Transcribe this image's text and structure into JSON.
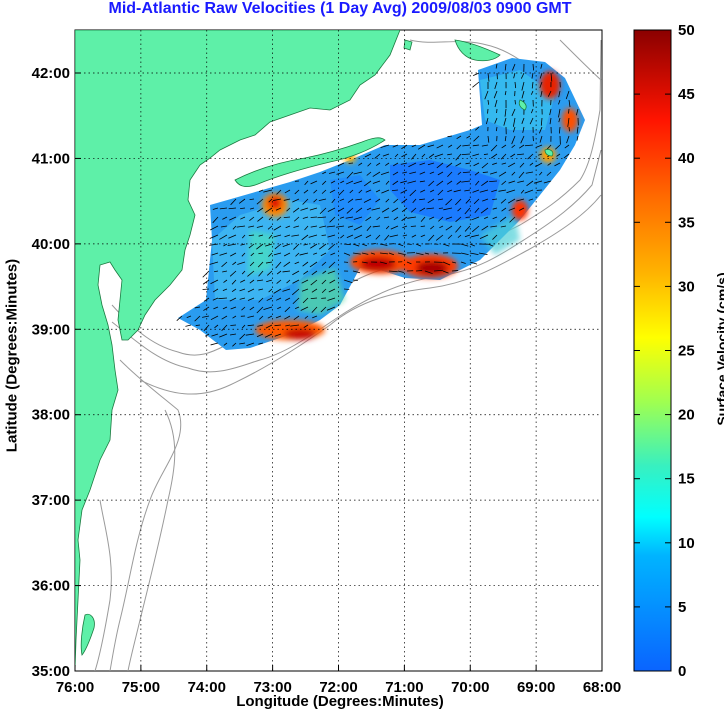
{
  "title": "Mid-Atlantic Raw Velocities (1 Day Avg) 2009/08/03 0900 GMT",
  "x_axis": {
    "label": "Longitude (Degrees:Minutes)",
    "ticks": [
      "76:00",
      "75:00",
      "74:00",
      "73:00",
      "72:00",
      "71:00",
      "70:00",
      "69:00",
      "68:00"
    ]
  },
  "y_axis": {
    "label": "Latitude (Degrees:Minutes)",
    "ticks": [
      "42:00",
      "41:00",
      "40:00",
      "39:00",
      "38:00",
      "37:00",
      "36:00",
      "35:00"
    ]
  },
  "colorbar": {
    "label": "Surface Velocity (cm/s)",
    "ticks": [
      "0",
      "5",
      "10",
      "15",
      "20",
      "25",
      "30",
      "35",
      "40",
      "45",
      "50"
    ]
  },
  "colors": {
    "land": "#5ef0a8",
    "water_low": "#1e8cff",
    "water_high": "#a00000",
    "isobath": "#9a9a9a",
    "title": "#1a1aff"
  }
}
